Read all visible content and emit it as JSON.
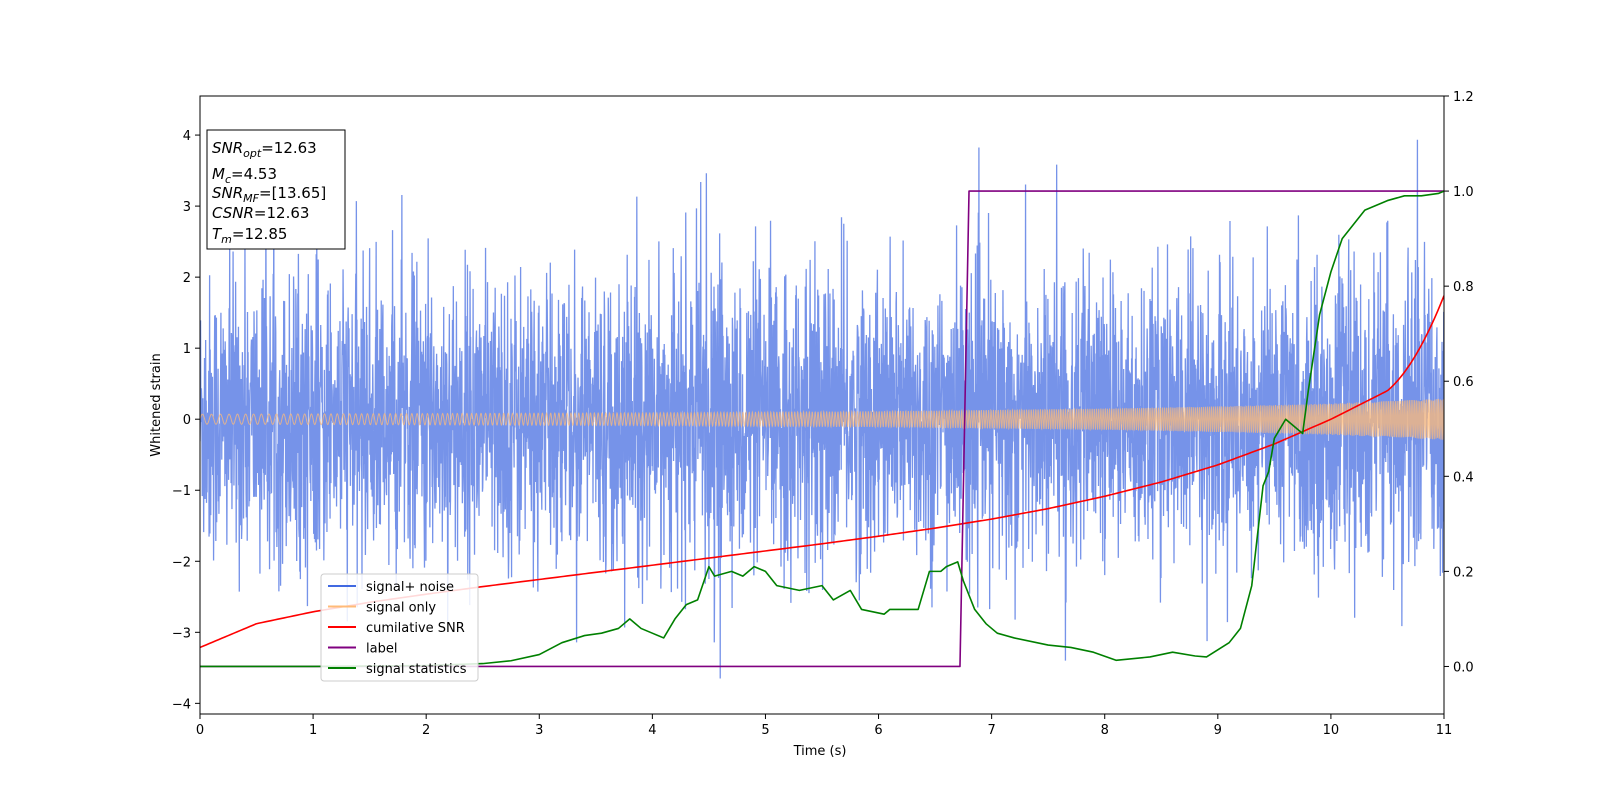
{
  "chart_data": {
    "type": "line",
    "xlabel": "Time (s)",
    "ylabel": "Whitened strain",
    "xlim": [
      0,
      11
    ],
    "ylim_left": [
      -4.15,
      4.55
    ],
    "ylim_right": [
      -0.1,
      1.2
    ],
    "x_ticks": [
      0,
      1,
      2,
      3,
      4,
      5,
      6,
      7,
      8,
      9,
      10,
      11
    ],
    "x_tick_labels": [
      "0",
      "1",
      "2",
      "3",
      "4",
      "5",
      "6",
      "7",
      "8",
      "9",
      "10",
      "11"
    ],
    "y_left_ticks": [
      -4,
      -3,
      -2,
      -1,
      0,
      1,
      2,
      3,
      4
    ],
    "y_left_tick_labels": [
      "−4",
      "−3",
      "−2",
      "−1",
      "0",
      "1",
      "2",
      "3",
      "4"
    ],
    "y_right_ticks": [
      0.0,
      0.2,
      0.4,
      0.6,
      0.8,
      1.0,
      1.2
    ],
    "y_right_tick_labels": [
      "0.0",
      "0.2",
      "0.4",
      "0.6",
      "0.8",
      "1.0",
      "1.2"
    ],
    "annotation": [
      {
        "base": "SNR",
        "sub": "opt",
        "value": "=12.63"
      },
      {
        "base": "M",
        "sub": "c",
        "value": "=4.53"
      },
      {
        "base": "SNR",
        "sub": "MF",
        "value": "=[13.65]"
      },
      {
        "base": "CSNR",
        "sub": "",
        "value": "=12.63"
      },
      {
        "base": "T",
        "sub": "m",
        "value": "=12.85"
      }
    ],
    "legend": [
      {
        "label": "signal+ noise",
        "color": "#4169e1"
      },
      {
        "label": "signal only",
        "color": "#ffbb78"
      },
      {
        "label": "cumilative SNR",
        "color": "#ff0000"
      },
      {
        "label": "label",
        "color": "#800080"
      },
      {
        "label": "signal statistics",
        "color": "#008000"
      }
    ],
    "series": [
      {
        "name": "signal+ noise",
        "axis": "left",
        "color": "#4169e1",
        "description": "whitened noise, std approx 1, min approx -3.7, max approx 4.15"
      },
      {
        "name": "signal only",
        "axis": "left",
        "color": "#ffbb78",
        "envelope": {
          "x": [
            0,
            2,
            4,
            6,
            8,
            9,
            10,
            11
          ],
          "amplitude": [
            0.07,
            0.08,
            0.09,
            0.11,
            0.15,
            0.18,
            0.22,
            0.29
          ]
        }
      },
      {
        "name": "cumilative SNR",
        "axis": "right",
        "color": "#ff0000",
        "x": [
          0,
          0.5,
          1,
          1.5,
          2,
          2.5,
          3,
          3.5,
          4,
          4.5,
          5,
          5.5,
          6,
          6.5,
          7,
          7.5,
          8,
          8.5,
          9,
          9.5,
          10,
          10.5,
          11
        ],
        "y": [
          0.04,
          0.09,
          0.115,
          0.135,
          0.152,
          0.168,
          0.183,
          0.198,
          0.213,
          0.228,
          0.243,
          0.258,
          0.274,
          0.291,
          0.31,
          0.332,
          0.358,
          0.388,
          0.424,
          0.468,
          0.52,
          0.58,
          0.78
        ]
      },
      {
        "name": "label",
        "axis": "right",
        "color": "#800080",
        "x": [
          0,
          6.72,
          6.8,
          11
        ],
        "y": [
          0,
          0,
          1,
          1
        ]
      },
      {
        "name": "signal statistics",
        "axis": "right",
        "color": "#008000",
        "x": [
          0,
          1,
          2,
          2.5,
          2.75,
          3.0,
          3.2,
          3.4,
          3.55,
          3.7,
          3.8,
          3.9,
          4.0,
          4.1,
          4.2,
          4.3,
          4.4,
          4.5,
          4.55,
          4.7,
          4.8,
          4.9,
          5.0,
          5.1,
          5.3,
          5.5,
          5.6,
          5.75,
          5.85,
          6.05,
          6.1,
          6.35,
          6.45,
          6.55,
          6.6,
          6.7,
          6.75,
          6.85,
          6.95,
          7.05,
          7.2,
          7.5,
          7.7,
          7.9,
          8.1,
          8.4,
          8.6,
          8.8,
          8.9,
          9.0,
          9.1,
          9.2,
          9.3,
          9.4,
          9.45,
          9.5,
          9.6,
          9.7,
          9.75,
          9.8,
          9.85,
          9.9,
          10.0,
          10.1,
          10.3,
          10.5,
          10.65,
          10.8,
          10.95,
          11.0
        ],
        "y": [
          0.0,
          0.0,
          0.002,
          0.006,
          0.012,
          0.025,
          0.05,
          0.065,
          0.07,
          0.08,
          0.1,
          0.08,
          0.07,
          0.06,
          0.1,
          0.13,
          0.14,
          0.21,
          0.19,
          0.2,
          0.19,
          0.21,
          0.2,
          0.17,
          0.16,
          0.17,
          0.14,
          0.16,
          0.12,
          0.11,
          0.12,
          0.12,
          0.2,
          0.2,
          0.21,
          0.22,
          0.18,
          0.12,
          0.09,
          0.07,
          0.06,
          0.045,
          0.04,
          0.03,
          0.013,
          0.02,
          0.03,
          0.022,
          0.02,
          0.035,
          0.05,
          0.08,
          0.17,
          0.38,
          0.41,
          0.48,
          0.52,
          0.5,
          0.49,
          0.58,
          0.66,
          0.74,
          0.83,
          0.9,
          0.96,
          0.98,
          0.99,
          0.99,
          0.995,
          1.0
        ]
      }
    ]
  }
}
